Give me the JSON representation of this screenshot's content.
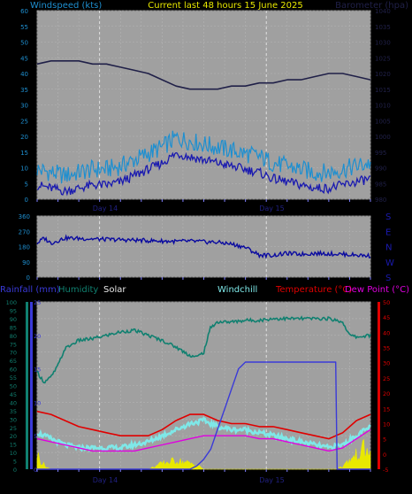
{
  "panel1": {
    "title_left": "Windspeed (kts)",
    "title_center": "Current last 48 hours 15 June 2025",
    "title_right": "Barometer (hpa)",
    "day_labels": [
      "Day 14",
      "Day 15"
    ],
    "left_ticks": [
      "60",
      "55",
      "50",
      "45",
      "40",
      "35",
      "30",
      "25",
      "20",
      "15",
      "10",
      "5",
      "0"
    ],
    "right_ticks": [
      "1040",
      "1035",
      "1030",
      "1025",
      "1020",
      "1015",
      "1010",
      "1005",
      "1000",
      "995",
      "990",
      "985",
      "980"
    ]
  },
  "panel2": {
    "day_labels": [],
    "left_ticks": [
      "360",
      "270",
      "180",
      "90",
      "0"
    ],
    "compass": [
      "S",
      "E",
      "N",
      "W",
      "S"
    ]
  },
  "panel3": {
    "label_rain": "Rainfall (mm)",
    "label_humidity": "Humidity",
    "label_solar": "Solar",
    "label_windchill": "Windchill",
    "label_temp": "Temperature (°C)",
    "label_dew": "Dew Point (°C)",
    "day_labels": [
      "Day 14",
      "Day 15"
    ],
    "humidity_ticks": [
      "100",
      "95",
      "90",
      "85",
      "80",
      "75",
      "70",
      "65",
      "60",
      "55",
      "50",
      "45",
      "40",
      "35",
      "30",
      "25",
      "20",
      "15",
      "10",
      "5",
      "0"
    ],
    "rain_ticks": [
      "25",
      "20",
      "15",
      "10",
      "5",
      "0"
    ],
    "temp_ticks": [
      "50",
      "45",
      "40",
      "35",
      "30",
      "25",
      "20",
      "15",
      "10",
      "5",
      "0",
      "-5"
    ]
  },
  "colors": {
    "wind_gust": "#1e8fd0",
    "wind_avg": "#1a1ab0",
    "barometer": "#202048",
    "direction": "#0a0aa0",
    "humidity": "#108070",
    "solar": "#e8e800",
    "windchill": "#7ee8e8",
    "temperature": "#e00000",
    "dewpoint": "#e000e0",
    "rain": "#3a3ad8"
  },
  "chart_data": [
    {
      "type": "line",
      "title": "Current last 48 hours 15 June 2025",
      "x_range_hours": [
        0,
        48
      ],
      "ylim_left": [
        0,
        60
      ],
      "ylim_right": [
        980,
        1040
      ],
      "series": [
        {
          "name": "Windspeed (kts)",
          "axis": "left",
          "x": [
            0,
            2,
            4,
            6,
            8,
            10,
            12,
            14,
            16,
            18,
            20,
            22,
            24,
            26,
            28,
            30,
            32,
            34,
            36,
            38,
            40,
            42,
            44,
            46,
            48
          ],
          "values": [
            5,
            4,
            3,
            4,
            5,
            5,
            6,
            8,
            10,
            12,
            15,
            14,
            13,
            12,
            11,
            10,
            9,
            7,
            6,
            5,
            4,
            4,
            5,
            6,
            7
          ]
        },
        {
          "name": "Barometer (hpa)",
          "axis": "right",
          "x": [
            0,
            2,
            4,
            6,
            8,
            10,
            12,
            14,
            16,
            18,
            20,
            22,
            24,
            26,
            28,
            30,
            32,
            34,
            36,
            38,
            40,
            42,
            44,
            46,
            48
          ],
          "values": [
            1023,
            1024,
            1024,
            1024,
            1023,
            1023,
            1022,
            1021,
            1020,
            1018,
            1016,
            1015,
            1015,
            1015,
            1016,
            1016,
            1017,
            1017,
            1018,
            1018,
            1019,
            1020,
            1020,
            1019,
            1018
          ]
        }
      ]
    },
    {
      "type": "line",
      "x_range_hours": [
        0,
        48
      ],
      "ylim": [
        0,
        360
      ],
      "series": [
        {
          "x": [
            0,
            1,
            2,
            4,
            6,
            8,
            10,
            12,
            14,
            16,
            18,
            20,
            22,
            24,
            26,
            28,
            30,
            32,
            34,
            36,
            38,
            40,
            42,
            44,
            46,
            48
          ],
          "values": [
            200,
            230,
            200,
            230,
            228,
            225,
            222,
            220,
            218,
            215,
            212,
            210,
            212,
            208,
            205,
            195,
            175,
            130,
            128,
            140,
            135,
            140,
            138,
            135,
            130,
            125
          ]
        }
      ]
    },
    {
      "type": "line",
      "x_range_hours": [
        0,
        48
      ],
      "ylim_humidity": [
        0,
        100
      ],
      "ylim_rain": [
        0,
        25
      ],
      "ylim_temp": [
        -5,
        50
      ],
      "series": [
        {
          "name": "Humidity",
          "axis": "humidity",
          "x": [
            0,
            1,
            2,
            3,
            4,
            6,
            8,
            10,
            12,
            14,
            16,
            18,
            20,
            22,
            23,
            24,
            25,
            26,
            28,
            30,
            32,
            34,
            36,
            38,
            40,
            42,
            44,
            45,
            46,
            48
          ],
          "values": [
            58,
            52,
            55,
            62,
            72,
            77,
            78,
            80,
            82,
            83,
            80,
            77,
            73,
            68,
            67,
            70,
            85,
            88,
            88,
            89,
            89,
            90,
            90,
            90,
            90,
            90,
            88,
            80,
            79,
            80
          ]
        },
        {
          "name": "Windchill",
          "axis": "temp",
          "x": [
            0,
            2,
            4,
            6,
            8,
            10,
            12,
            14,
            16,
            18,
            20,
            22,
            24,
            26,
            28,
            30,
            32,
            34,
            36,
            38,
            40,
            42,
            44,
            46,
            48
          ],
          "values": [
            7,
            5,
            3,
            2,
            2,
            2,
            2,
            3,
            4,
            6,
            8,
            10,
            11,
            9,
            8,
            8,
            7,
            6,
            5,
            4,
            3,
            2,
            3,
            6,
            9
          ]
        },
        {
          "name": "Temperature (°C)",
          "axis": "temp",
          "x": [
            0,
            2,
            4,
            6,
            8,
            10,
            12,
            14,
            16,
            18,
            20,
            22,
            24,
            26,
            28,
            30,
            32,
            34,
            36,
            38,
            40,
            42,
            44,
            46,
            48
          ],
          "values": [
            14,
            13,
            11,
            9,
            8,
            7,
            6,
            6,
            6,
            8,
            11,
            13,
            13,
            11,
            10,
            10,
            9,
            9,
            8,
            7,
            6,
            5,
            7,
            11,
            13
          ]
        },
        {
          "name": "Dew Point (°C)",
          "axis": "temp",
          "x": [
            0,
            2,
            4,
            6,
            8,
            10,
            12,
            14,
            16,
            18,
            20,
            22,
            24,
            26,
            28,
            30,
            32,
            34,
            36,
            38,
            40,
            42,
            44,
            46,
            48
          ],
          "values": [
            5,
            4,
            3,
            2,
            1,
            1,
            1,
            1,
            2,
            3,
            4,
            5,
            6,
            6,
            6,
            6,
            5,
            5,
            4,
            3,
            2,
            1,
            2,
            5,
            8
          ]
        },
        {
          "name": "Rainfall (mm)",
          "axis": "rain",
          "x": [
            0,
            22,
            23,
            24,
            25,
            26,
            27,
            28,
            29,
            30,
            32,
            34,
            36,
            38,
            40,
            42,
            43,
            43.2,
            48
          ],
          "values": [
            0,
            0,
            0.5,
            1.5,
            3,
            6,
            9,
            12,
            15,
            16,
            16,
            16,
            16,
            16,
            16,
            16,
            16,
            0,
            0
          ]
        },
        {
          "name": "Solar",
          "axis": "humidity",
          "x": [
            0,
            0.5,
            1,
            1.5,
            2,
            3,
            4,
            5,
            6,
            8,
            10,
            12,
            14,
            16,
            18,
            20,
            21,
            22,
            23,
            24,
            26,
            28,
            30,
            32,
            34,
            36,
            38,
            40,
            42,
            43,
            44,
            45,
            46,
            47,
            48
          ],
          "values": [
            10,
            6,
            3,
            1,
            0,
            0,
            0,
            0,
            0,
            0,
            0,
            0,
            0,
            0,
            4,
            6,
            5,
            4,
            3,
            0,
            0,
            0,
            0,
            0,
            0,
            0,
            0,
            0,
            0,
            0,
            2,
            6,
            10,
            14,
            10
          ]
        }
      ]
    }
  ]
}
